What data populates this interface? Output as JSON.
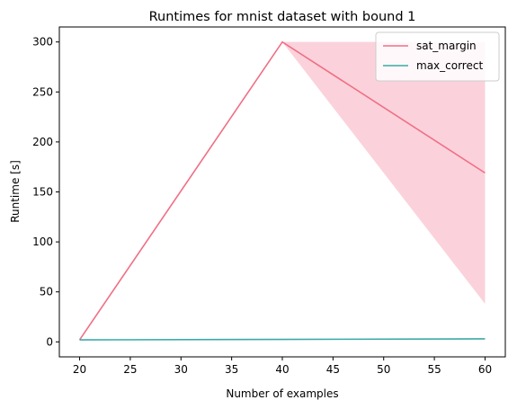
{
  "chart_data": {
    "type": "line",
    "title": "Runtimes for mnist dataset with bound 1",
    "xlabel": "Number of examples",
    "ylabel": "Runtime [s]",
    "xlim": [
      18,
      62
    ],
    "ylim": [
      -15,
      315
    ],
    "xticks": [
      20,
      25,
      30,
      35,
      40,
      45,
      50,
      55,
      60
    ],
    "yticks": [
      0,
      50,
      100,
      150,
      200,
      250,
      300
    ],
    "legend_position": "top-right",
    "series": [
      {
        "name": "sat_margin",
        "color": "#f06f85",
        "band_color": "#fbd2db",
        "x": [
          20,
          40,
          60
        ],
        "y": [
          2,
          300,
          169
        ],
        "lower": [
          2,
          300,
          38
        ],
        "upper": [
          2,
          300,
          300
        ]
      },
      {
        "name": "max_correct",
        "color": "#3aa9a6",
        "band_color": "#b6e2e0",
        "x": [
          20,
          40,
          60
        ],
        "y": [
          2,
          2.5,
          3
        ],
        "lower": [
          2,
          2.5,
          3
        ],
        "upper": [
          2,
          2.5,
          3
        ]
      }
    ]
  }
}
